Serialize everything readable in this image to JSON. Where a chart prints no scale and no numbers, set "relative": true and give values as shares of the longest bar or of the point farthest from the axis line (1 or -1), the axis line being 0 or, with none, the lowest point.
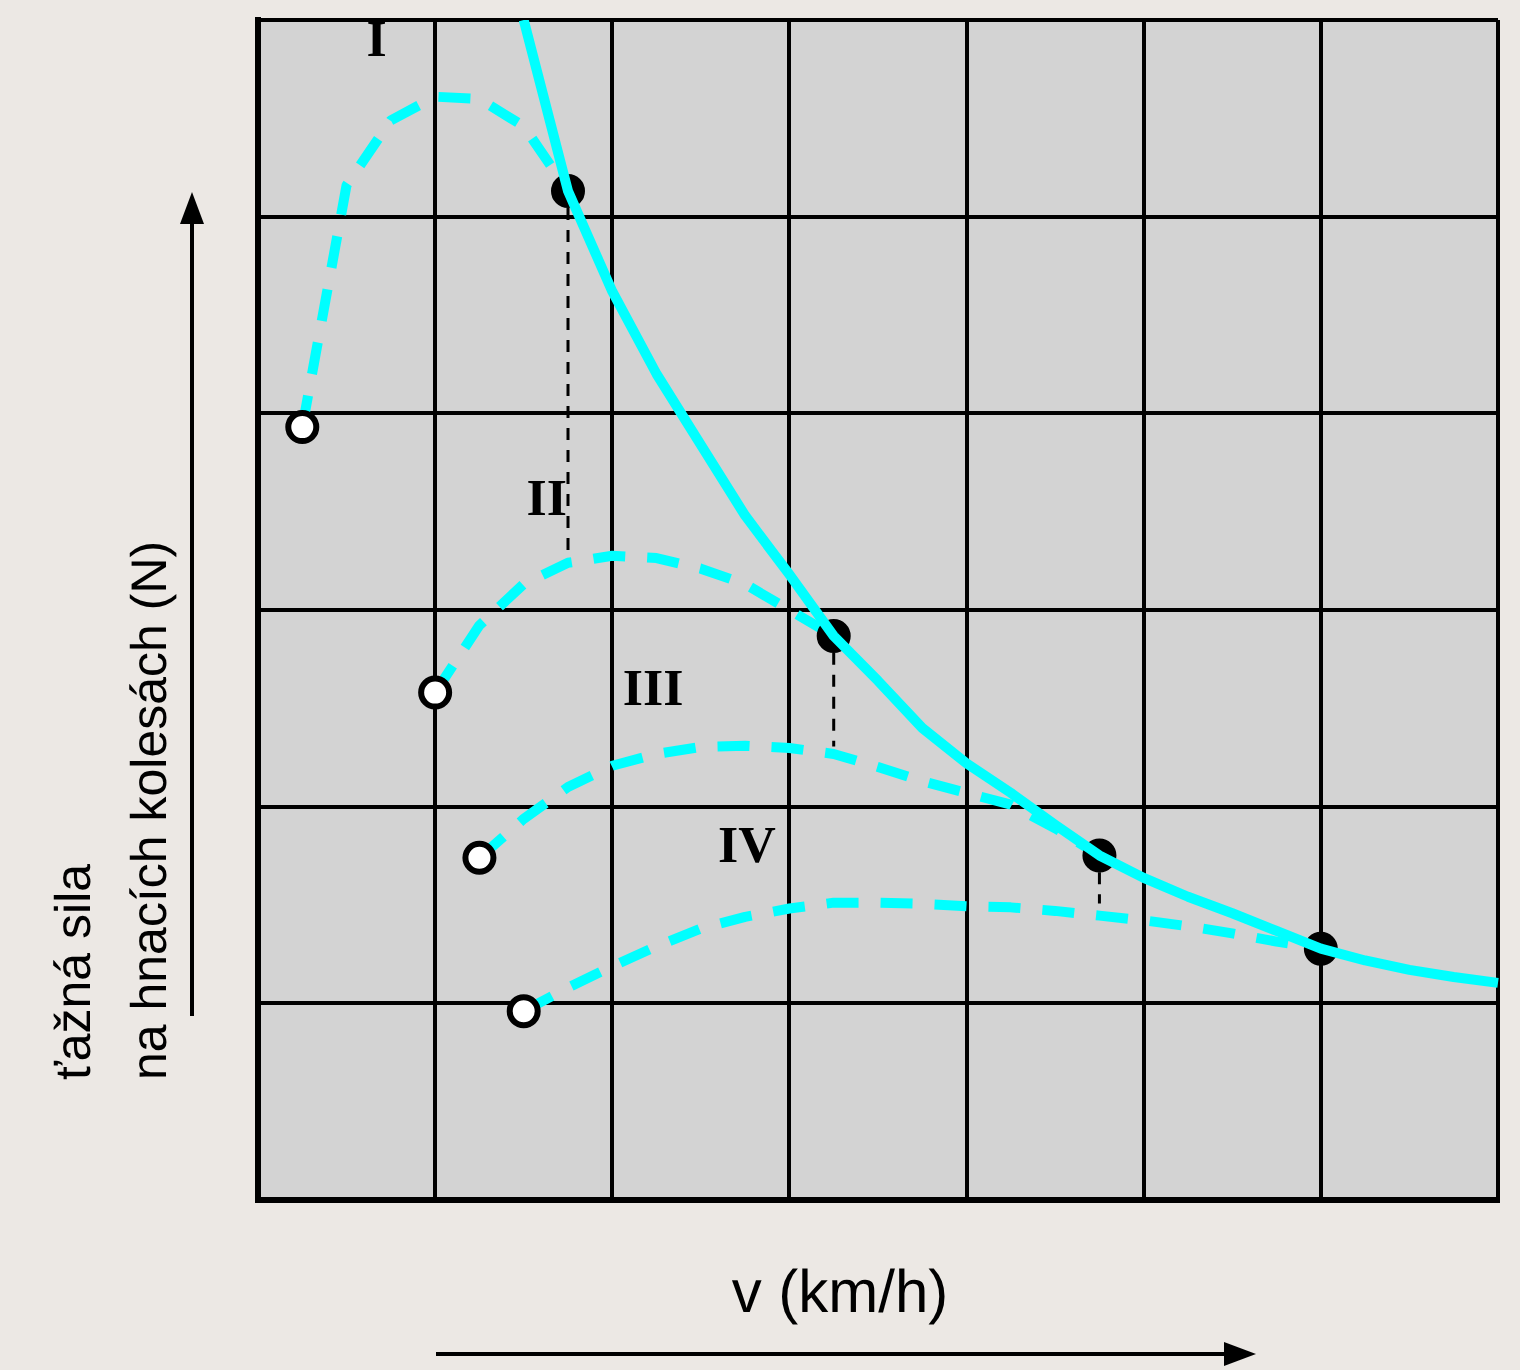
{
  "chart_data": {
    "type": "line",
    "xlabel": "v (km/h)",
    "ylabel": "ťažná sila\nna hnacích kolesách  (N)",
    "relative": true,
    "grid": true,
    "legend": false,
    "categories": [
      null,
      null,
      null,
      null,
      null,
      null,
      null,
      null,
      null,
      null,
      null,
      null,
      null,
      null,
      null,
      null,
      null,
      null,
      null,
      null,
      null,
      null,
      null,
      null,
      null,
      null,
      null,
      null,
      null
    ],
    "series": [
      {
        "color": "#00ffff",
        "line_style": "solid",
        "values": [
          null,
          null,
          null,
          null,
          null,
          null,
          1.0,
          0.855,
          0.77,
          0.7,
          0.64,
          0.58,
          0.53,
          0.478,
          0.44,
          0.4,
          0.37,
          0.345,
          0.318,
          0.292,
          0.273,
          0.257,
          0.243,
          0.228,
          0.213,
          0.203,
          0.195,
          0.189,
          0.184
        ]
      },
      {
        "name": "I",
        "color": "#00ffff",
        "line_style": "dashed",
        "values": [
          null,
          0.655,
          0.86,
          0.915,
          0.935,
          0.933,
          0.91,
          0.855,
          null,
          null,
          null,
          null,
          null,
          null,
          null,
          null,
          null,
          null,
          null,
          null,
          null,
          null,
          null,
          null,
          null,
          null,
          null,
          null,
          null
        ]
      },
      {
        "name": "II",
        "color": "#00ffff",
        "line_style": "dashed",
        "values": [
          null,
          null,
          null,
          null,
          0.43,
          0.487,
          0.522,
          0.54,
          0.546,
          0.544,
          0.535,
          0.522,
          0.5,
          0.478,
          null,
          null,
          null,
          null,
          null,
          null,
          null,
          null,
          null,
          null,
          null,
          null,
          null,
          null,
          null
        ]
      },
      {
        "name": "III",
        "color": "#00ffff",
        "line_style": "dashed",
        "values": [
          null,
          null,
          null,
          null,
          null,
          0.29,
          0.323,
          0.35,
          0.368,
          0.378,
          0.384,
          0.385,
          0.383,
          0.378,
          0.367,
          0.355,
          0.345,
          0.335,
          0.315,
          0.292,
          null,
          null,
          null,
          null,
          null,
          null,
          null,
          null,
          null
        ]
      },
      {
        "name": "IV",
        "color": "#00ffff",
        "line_style": "dashed",
        "values": [
          null,
          null,
          null,
          null,
          null,
          null,
          0.16,
          0.18,
          0.198,
          0.215,
          0.23,
          0.24,
          0.247,
          0.252,
          0.252,
          0.251,
          0.249,
          0.248,
          0.245,
          0.241,
          0.237,
          0.232,
          0.226,
          0.219,
          0.213,
          null,
          null,
          null,
          null
        ]
      }
    ]
  }
}
